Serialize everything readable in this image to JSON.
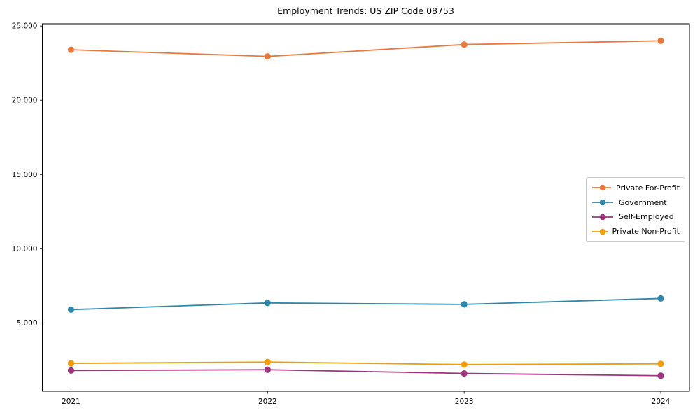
{
  "chart_data": {
    "type": "line",
    "title": "Employment Trends: US ZIP Code 08753",
    "categories": [
      "2021",
      "2022",
      "2023",
      "2024"
    ],
    "series": [
      {
        "name": "Private For-Profit",
        "color": "#e8793d",
        "values": [
          23400,
          22950,
          23750,
          24000
        ]
      },
      {
        "name": "Government",
        "color": "#2e87a9",
        "values": [
          5900,
          6350,
          6250,
          6650
        ]
      },
      {
        "name": "Self-Employed",
        "color": "#9e347d",
        "values": [
          1800,
          1850,
          1600,
          1450
        ]
      },
      {
        "name": "Private Non-Profit",
        "color": "#f29c07",
        "values": [
          2280,
          2370,
          2200,
          2250
        ]
      }
    ],
    "yticks": [
      5000,
      10000,
      15000,
      20000,
      25000
    ],
    "ylim": [
      400,
      25150
    ],
    "xlabel": "",
    "ylabel": "",
    "grid": false,
    "legend_position": "right-middle"
  }
}
